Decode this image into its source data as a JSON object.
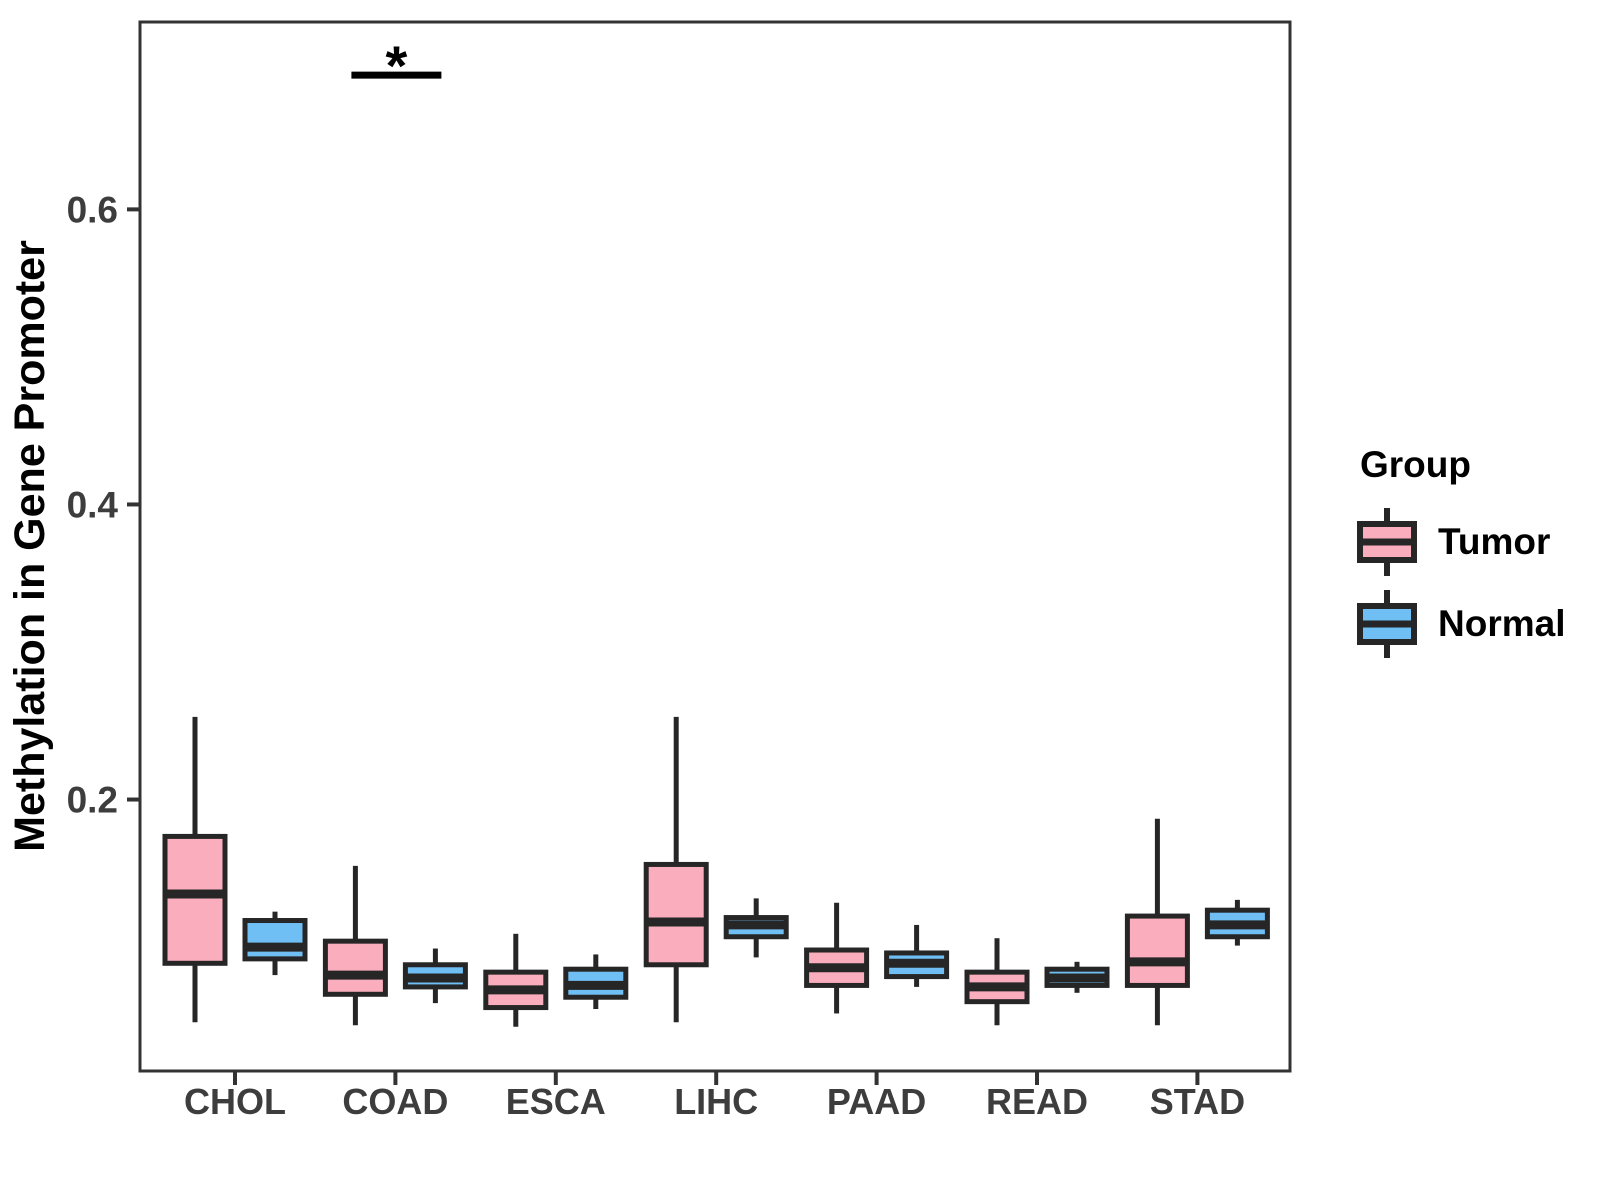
{
  "figure": {
    "title": "",
    "legend": {
      "title": "Group",
      "entries": [
        {
          "label": "Tumor",
          "color": "#FAAEBD"
        },
        {
          "label": "Normal",
          "color": "#70BFF4"
        }
      ]
    }
  },
  "chart_data": {
    "type": "boxplot",
    "title": "",
    "xlabel": "",
    "ylabel": "Methylation in Gene Promoter",
    "categories": [
      "CHOL",
      "COAD",
      "ESCA",
      "LIHC",
      "PAAD",
      "READ",
      "STAD"
    ],
    "groups": [
      "Tumor",
      "Normal"
    ],
    "yticks": [
      0.2,
      0.4,
      0.6
    ],
    "ytick_labels": [
      "0.2",
      "0.4",
      "0.6"
    ],
    "ylim": [
      0.016,
      0.727
    ],
    "grid": false,
    "legend_position": "right",
    "series": [
      {
        "name": "Tumor",
        "color": "#FAAEBD",
        "boxes": [
          {
            "category": "CHOL",
            "min": 0.049,
            "q1": 0.089,
            "median": 0.136,
            "q3": 0.175,
            "max": 0.256
          },
          {
            "category": "COAD",
            "min": 0.047,
            "q1": 0.068,
            "median": 0.081,
            "q3": 0.104,
            "max": 0.155
          },
          {
            "category": "ESCA",
            "min": 0.046,
            "q1": 0.059,
            "median": 0.071,
            "q3": 0.083,
            "max": 0.109
          },
          {
            "category": "LIHC",
            "min": 0.049,
            "q1": 0.088,
            "median": 0.117,
            "q3": 0.156,
            "max": 0.256
          },
          {
            "category": "PAAD",
            "min": 0.055,
            "q1": 0.074,
            "median": 0.086,
            "q3": 0.098,
            "max": 0.13
          },
          {
            "category": "READ",
            "min": 0.047,
            "q1": 0.063,
            "median": 0.073,
            "q3": 0.083,
            "max": 0.106
          },
          {
            "category": "STAD",
            "min": 0.047,
            "q1": 0.074,
            "median": 0.09,
            "q3": 0.121,
            "max": 0.187
          }
        ]
      },
      {
        "name": "Normal",
        "color": "#70BFF4",
        "boxes": [
          {
            "category": "CHOL",
            "min": 0.081,
            "q1": 0.092,
            "median": 0.1,
            "q3": 0.118,
            "max": 0.124
          },
          {
            "category": "COAD",
            "min": 0.062,
            "q1": 0.073,
            "median": 0.079,
            "q3": 0.088,
            "max": 0.099
          },
          {
            "category": "ESCA",
            "min": 0.058,
            "q1": 0.066,
            "median": 0.074,
            "q3": 0.085,
            "max": 0.095
          },
          {
            "category": "LIHC",
            "min": 0.093,
            "q1": 0.107,
            "median": 0.115,
            "q3": 0.12,
            "max": 0.133
          },
          {
            "category": "PAAD",
            "min": 0.073,
            "q1": 0.08,
            "median": 0.089,
            "q3": 0.096,
            "max": 0.115
          },
          {
            "category": "READ",
            "min": 0.069,
            "q1": 0.074,
            "median": 0.079,
            "q3": 0.085,
            "max": 0.09
          },
          {
            "category": "STAD",
            "min": 0.101,
            "q1": 0.107,
            "median": 0.115,
            "q3": 0.125,
            "max": 0.132
          }
        ]
      }
    ],
    "annotations": [
      {
        "type": "significance",
        "category": "COAD",
        "label": "*",
        "bar_y": 0.691
      }
    ],
    "colors": {
      "tumor": "#FAAEBD",
      "normal": "#70BFF4",
      "box_border": "#262626",
      "axis_line": "#333333",
      "axis_text": "#3D3D3D",
      "annotation": "#000000",
      "background": "#FFFFFF"
    }
  }
}
